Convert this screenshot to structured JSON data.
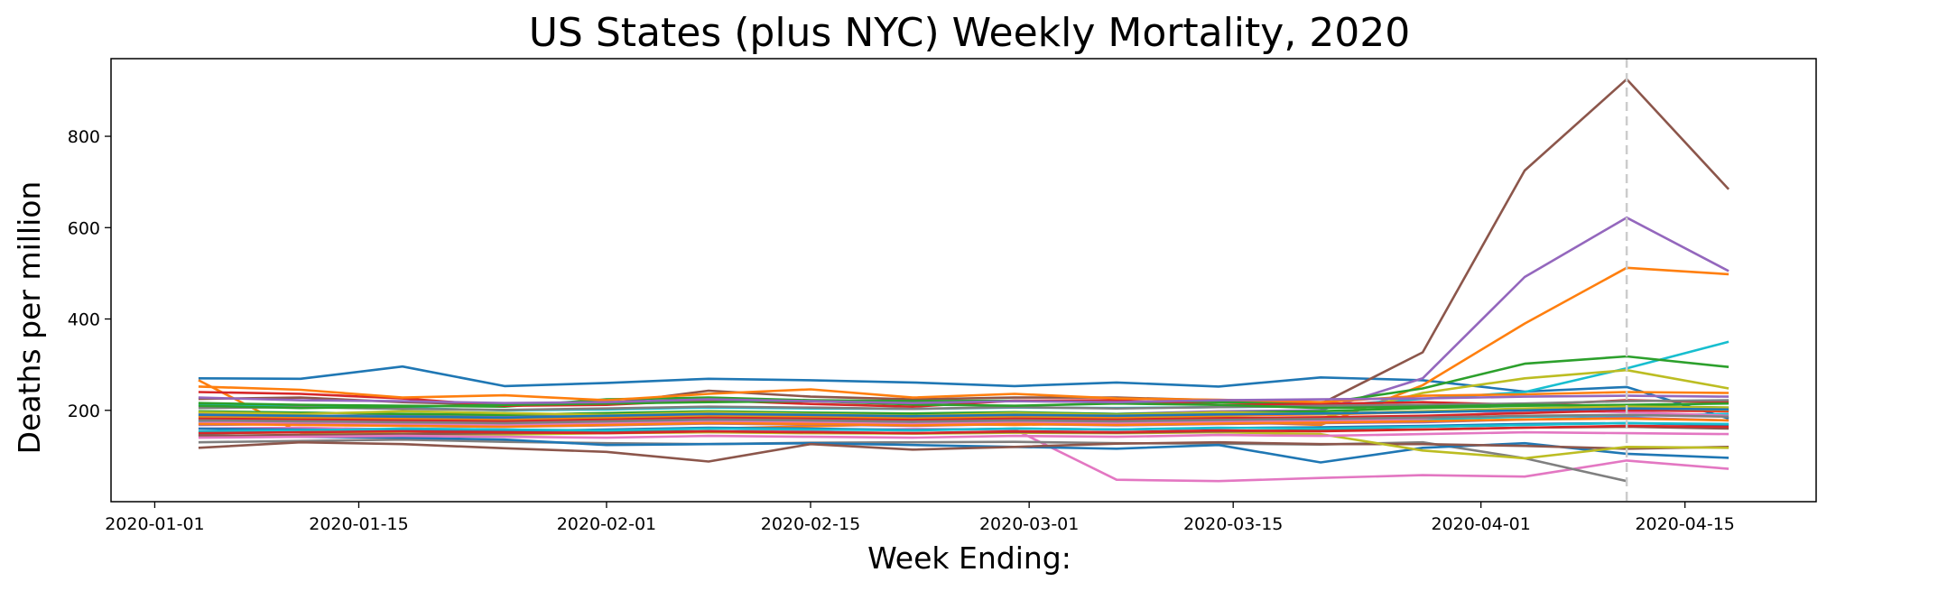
{
  "chart_data": {
    "type": "line",
    "title": "US States (plus NYC) Weekly Mortality, 2020",
    "xlabel": "Week Ending:",
    "ylabel": "Deaths per million",
    "x": [
      "2020-01-04",
      "2020-01-11",
      "2020-01-18",
      "2020-01-25",
      "2020-02-01",
      "2020-02-08",
      "2020-02-15",
      "2020-02-22",
      "2020-02-29",
      "2020-03-07",
      "2020-03-14",
      "2020-03-21",
      "2020-03-28",
      "2020-04-04",
      "2020-04-11",
      "2020-04-18"
    ],
    "x_ticks": [
      "2020-01-01",
      "2020-01-15",
      "2020-02-01",
      "2020-02-15",
      "2020-03-01",
      "2020-03-15",
      "2020-04-01",
      "2020-04-15"
    ],
    "y_ticks": [
      200,
      400,
      600,
      800
    ],
    "ylim": [
      0,
      970
    ],
    "xlim": [
      "2019-12-29",
      "2020-04-24"
    ],
    "grid": false,
    "reference_line": {
      "x": "2020-04-11",
      "style": "dashed",
      "color": "#cccccc"
    },
    "series": [
      {
        "color": "#1f77b4",
        "values": [
          270,
          269,
          296,
          253,
          260,
          269,
          266,
          261,
          253,
          261,
          252,
          272,
          266,
          241,
          251,
          182
        ]
      },
      {
        "color": "#ff7f0e",
        "values": [
          266,
          151,
          146,
          150,
          155,
          160,
          165,
          170,
          168,
          172,
          175,
          168,
          255,
          390,
          512,
          498
        ]
      },
      {
        "color": "#8c564b",
        "values": [
          225,
          228,
          218,
          212,
          214,
          243,
          230,
          224,
          228,
          228,
          222,
          214,
          327,
          725,
          925,
          684
        ]
      },
      {
        "color": "#9467bd",
        "values": [
          192,
          195,
          190,
          188,
          191,
          196,
          193,
          190,
          195,
          192,
          198,
          200,
          270,
          492,
          622,
          505
        ]
      },
      {
        "color": "#17becf",
        "values": [
          212,
          208,
          205,
          200,
          202,
          206,
          204,
          203,
          206,
          205,
          207,
          209,
          225,
          240,
          292,
          350
        ]
      },
      {
        "color": "#2ca02c",
        "values": [
          216,
          212,
          210,
          208,
          224,
          228,
          222,
          220,
          221,
          219,
          218,
          215,
          248,
          302,
          318,
          295
        ]
      },
      {
        "color": "#bcbd22",
        "values": [
          185,
          183,
          180,
          178,
          182,
          186,
          184,
          181,
          184,
          183,
          185,
          182,
          238,
          270,
          288,
          248
        ]
      },
      {
        "color": "#e377c2",
        "values": [
          160,
          162,
          158,
          154,
          157,
          160,
          156,
          159,
          158,
          48,
          45,
          52,
          58,
          55,
          90,
          72
        ]
      },
      {
        "color": "#7f7f7f",
        "values": [
          130,
          133,
          136,
          131,
          128,
          126,
          129,
          130,
          131,
          128,
          127,
          125,
          130,
          95,
          45,
          null
        ]
      },
      {
        "color": "#1f77b4",
        "values": [
          146,
          142,
          140,
          136,
          124,
          126,
          128,
          124,
          120,
          116,
          124,
          86,
          118,
          128,
          105,
          96
        ]
      },
      {
        "color": "#8c564b",
        "values": [
          118,
          130,
          126,
          117,
          109,
          88,
          126,
          114,
          120,
          127,
          130,
          126,
          126,
          122,
          116,
          120
        ]
      },
      {
        "color": "#bcbd22",
        "values": [
          150,
          152,
          149,
          147,
          150,
          152,
          150,
          149,
          151,
          150,
          152,
          148,
          112,
          95,
          120,
          118
        ]
      },
      {
        "color": "#d62728",
        "values": [
          240,
          236,
          226,
          210,
          212,
          222,
          214,
          208,
          221,
          222,
          212,
          214,
          218,
          212,
          222,
          218
        ]
      },
      {
        "color": "#ff7f0e",
        "values": [
          252,
          245,
          228,
          233,
          222,
          236,
          246,
          228,
          236,
          226,
          223,
          218,
          232,
          235,
          240,
          238
        ]
      },
      {
        "color": "#2ca02c",
        "values": [
          198,
          195,
          192,
          190,
          194,
          198,
          195,
          193,
          196,
          192,
          195,
          198,
          205,
          210,
          212,
          215
        ]
      },
      {
        "color": "#17becf",
        "values": [
          176,
          174,
          170,
          168,
          172,
          176,
          174,
          171,
          175,
          172,
          176,
          178,
          180,
          186,
          188,
          192
        ]
      },
      {
        "color": "#9467bd",
        "values": [
          168,
          170,
          166,
          164,
          167,
          171,
          169,
          166,
          170,
          167,
          170,
          172,
          174,
          180,
          184,
          178
        ]
      },
      {
        "color": "#e377c2",
        "values": [
          172,
          174,
          170,
          168,
          171,
          175,
          173,
          170,
          174,
          172,
          175,
          176,
          182,
          200,
          196,
          188
        ]
      },
      {
        "color": "#7f7f7f",
        "values": [
          205,
          207,
          203,
          201,
          204,
          208,
          206,
          203,
          207,
          204,
          207,
          210,
          212,
          215,
          220,
          222
        ]
      },
      {
        "color": "#d62728",
        "values": [
          182,
          180,
          178,
          176,
          180,
          184,
          182,
          179,
          182,
          180,
          183,
          185,
          188,
          194,
          200,
          198
        ]
      },
      {
        "color": "#1f77b4",
        "values": [
          160,
          158,
          156,
          154,
          158,
          162,
          160,
          157,
          160,
          158,
          161,
          163,
          166,
          170,
          172,
          168
        ]
      },
      {
        "color": "#ff7f0e",
        "values": [
          188,
          186,
          184,
          182,
          186,
          190,
          188,
          185,
          188,
          186,
          189,
          191,
          196,
          202,
          205,
          200
        ]
      },
      {
        "color": "#2ca02c",
        "values": [
          210,
          205,
          208,
          212,
          215,
          218,
          220,
          213,
          210,
          215,
          212,
          205,
          208,
          212,
          210,
          206
        ]
      },
      {
        "color": "#8c564b",
        "values": [
          144,
          146,
          148,
          150,
          152,
          154,
          152,
          150,
          153,
          151,
          154,
          156,
          158,
          162,
          164,
          160
        ]
      },
      {
        "color": "#bcbd22",
        "values": [
          196,
          192,
          198,
          194,
          190,
          196,
          192,
          188,
          194,
          190,
          196,
          192,
          198,
          204,
          208,
          206
        ]
      },
      {
        "color": "#17becf",
        "values": [
          154,
          156,
          160,
          158,
          156,
          160,
          158,
          156,
          160,
          158,
          162,
          160,
          164,
          168,
          172,
          170
        ]
      },
      {
        "color": "#9467bd",
        "values": [
          228,
          222,
          220,
          216,
          218,
          224,
          220,
          216,
          220,
          218,
          222,
          224,
          226,
          230,
          232,
          230
        ]
      },
      {
        "color": "#e377c2",
        "values": [
          140,
          142,
          144,
          142,
          140,
          144,
          142,
          140,
          144,
          142,
          146,
          144,
          148,
          152,
          150,
          148
        ]
      },
      {
        "color": "#7f7f7f",
        "values": [
          178,
          176,
          174,
          172,
          176,
          180,
          178,
          175,
          178,
          176,
          179,
          181,
          184,
          188,
          190,
          186
        ]
      },
      {
        "color": "#d62728",
        "values": [
          150,
          152,
          154,
          152,
          150,
          154,
          152,
          150,
          154,
          152,
          156,
          154,
          158,
          162,
          166,
          164
        ]
      },
      {
        "color": "#1f77b4",
        "values": [
          190,
          188,
          186,
          184,
          188,
          192,
          190,
          187,
          190,
          188,
          191,
          193,
          196,
          200,
          204,
          202
        ]
      },
      {
        "color": "#ff7f0e",
        "values": [
          170,
          168,
          166,
          164,
          168,
          172,
          170,
          167,
          170,
          168,
          171,
          173,
          176,
          180,
          182,
          178
        ]
      }
    ]
  }
}
